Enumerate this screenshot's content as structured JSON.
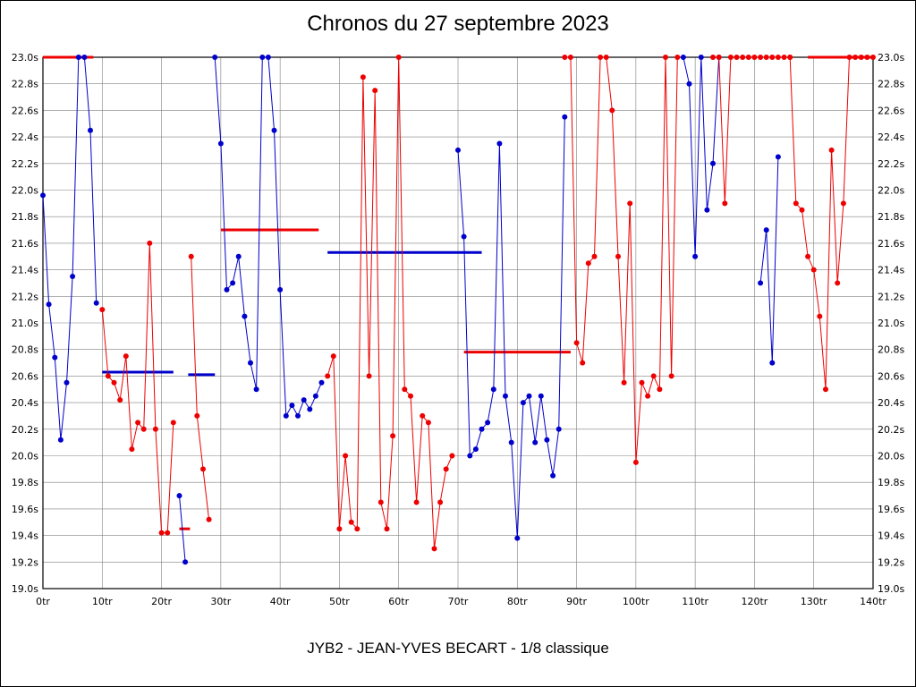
{
  "chart_data": {
    "type": "line",
    "title": "Chronos du 27 septembre 2023",
    "footer": "JYB2 - JEAN-YVES BECART - 1/8 classique",
    "xlim": [
      0,
      140
    ],
    "ylim": [
      19.0,
      23.0
    ],
    "x_tick_step": 10,
    "y_tick_step": 0.2,
    "x_unit": "tr",
    "y_unit": "s",
    "grid": true,
    "legend": "none",
    "colors": {
      "red": "#ee0000",
      "blue": "#0000cc",
      "grid": "#808080",
      "axis": "#000000",
      "background": "#ffffff"
    },
    "series": [
      {
        "name": "stint-blue",
        "color_key": "blue",
        "segments": [
          [
            [
              0,
              21.96
            ],
            [
              1,
              21.14
            ],
            [
              2,
              20.74
            ],
            [
              3,
              20.12
            ],
            [
              4,
              20.55
            ],
            [
              5,
              21.35
            ],
            [
              6,
              23.0
            ],
            [
              7,
              23.0
            ],
            [
              8,
              22.45
            ],
            [
              9,
              21.15
            ]
          ],
          [
            [
              23,
              19.7
            ],
            [
              24,
              19.2
            ]
          ],
          [
            [
              29,
              23.0
            ],
            [
              30,
              22.35
            ],
            [
              31,
              21.25
            ],
            [
              32,
              21.3
            ],
            [
              33,
              21.5
            ],
            [
              34,
              21.05
            ],
            [
              35,
              20.7
            ],
            [
              36,
              20.5
            ],
            [
              37,
              23.0
            ],
            [
              38,
              23.0
            ],
            [
              39,
              22.45
            ],
            [
              40,
              21.25
            ],
            [
              41,
              20.3
            ],
            [
              42,
              20.38
            ],
            [
              43,
              20.3
            ],
            [
              44,
              20.42
            ],
            [
              45,
              20.35
            ],
            [
              46,
              20.45
            ],
            [
              47,
              20.55
            ]
          ],
          [
            [
              70,
              22.3
            ],
            [
              71,
              21.65
            ],
            [
              72,
              20.0
            ],
            [
              73,
              20.05
            ],
            [
              74,
              20.2
            ],
            [
              75,
              20.25
            ],
            [
              76,
              20.5
            ],
            [
              77,
              22.35
            ],
            [
              78,
              20.45
            ],
            [
              79,
              20.1
            ],
            [
              80,
              19.38
            ],
            [
              81,
              20.4
            ],
            [
              82,
              20.45
            ],
            [
              83,
              20.1
            ],
            [
              84,
              20.45
            ],
            [
              85,
              20.12
            ],
            [
              86,
              19.85
            ],
            [
              87,
              20.2
            ],
            [
              88,
              22.55
            ]
          ],
          [
            [
              108,
              23.0
            ],
            [
              109,
              22.8
            ],
            [
              110,
              21.5
            ],
            [
              111,
              23.0
            ],
            [
              112,
              21.85
            ],
            [
              113,
              22.2
            ],
            [
              114,
              23.0
            ]
          ],
          [
            [
              121,
              21.3
            ],
            [
              122,
              21.7
            ],
            [
              123,
              20.7
            ],
            [
              124,
              22.25
            ]
          ]
        ]
      },
      {
        "name": "stint-red",
        "color_key": "red",
        "segments": [
          [
            [
              10,
              21.1
            ],
            [
              11,
              20.6
            ],
            [
              12,
              20.55
            ],
            [
              13,
              20.42
            ],
            [
              14,
              20.75
            ],
            [
              15,
              20.05
            ],
            [
              16,
              20.25
            ],
            [
              17,
              20.2
            ],
            [
              18,
              21.6
            ],
            [
              19,
              20.2
            ],
            [
              20,
              19.42
            ],
            [
              21,
              19.42
            ],
            [
              22,
              20.25
            ]
          ],
          [
            [
              25,
              21.5
            ],
            [
              26,
              20.3
            ],
            [
              27,
              19.9
            ],
            [
              28,
              19.52
            ]
          ],
          [
            [
              48,
              20.6
            ],
            [
              49,
              20.75
            ],
            [
              50,
              19.45
            ],
            [
              51,
              20.0
            ],
            [
              52,
              19.5
            ],
            [
              53,
              19.45
            ],
            [
              54,
              22.85
            ],
            [
              55,
              20.6
            ],
            [
              56,
              22.75
            ],
            [
              57,
              19.65
            ],
            [
              58,
              19.45
            ],
            [
              59,
              20.15
            ],
            [
              60,
              23.0
            ],
            [
              61,
              20.5
            ],
            [
              62,
              20.45
            ],
            [
              63,
              19.65
            ],
            [
              64,
              20.3
            ],
            [
              65,
              20.25
            ],
            [
              66,
              19.3
            ],
            [
              67,
              19.65
            ],
            [
              68,
              19.9
            ],
            [
              69,
              20.0
            ]
          ],
          [
            [
              88,
              23.0
            ],
            [
              89,
              23.0
            ],
            [
              90,
              20.85
            ],
            [
              91,
              20.7
            ],
            [
              92,
              21.45
            ],
            [
              93,
              21.5
            ],
            [
              94,
              23.0
            ],
            [
              95,
              23.0
            ],
            [
              96,
              22.6
            ],
            [
              97,
              21.5
            ],
            [
              98,
              20.55
            ],
            [
              99,
              21.9
            ],
            [
              100,
              19.95
            ],
            [
              101,
              20.55
            ],
            [
              102,
              20.45
            ],
            [
              103,
              20.6
            ],
            [
              104,
              20.5
            ],
            [
              105,
              23.0
            ],
            [
              106,
              20.6
            ],
            [
              107,
              23.0
            ]
          ],
          [
            [
              113,
              23.0
            ],
            [
              114,
              23.0
            ],
            [
              115,
              21.9
            ],
            [
              116,
              23.0
            ],
            [
              117,
              23.0
            ],
            [
              118,
              23.0
            ],
            [
              119,
              23.0
            ],
            [
              120,
              23.0
            ],
            [
              121,
              23.0
            ],
            [
              122,
              23.0
            ],
            [
              123,
              23.0
            ],
            [
              124,
              23.0
            ],
            [
              125,
              23.0
            ],
            [
              126,
              23.0
            ]
          ],
          [
            [
              126,
              23.0
            ],
            [
              127,
              21.9
            ],
            [
              128,
              21.85
            ],
            [
              129,
              21.5
            ],
            [
              130,
              21.4
            ],
            [
              131,
              21.05
            ],
            [
              132,
              20.5
            ],
            [
              133,
              22.3
            ],
            [
              134,
              21.3
            ],
            [
              135,
              21.9
            ],
            [
              136,
              23.0
            ],
            [
              137,
              23.0
            ],
            [
              138,
              23.0
            ],
            [
              139,
              23.0
            ],
            [
              140,
              23.0
            ]
          ]
        ]
      }
    ],
    "average_lines": [
      {
        "color_key": "red",
        "x1": 0,
        "x2": 8.5,
        "y": 23.0
      },
      {
        "color_key": "blue",
        "x1": 10,
        "x2": 22,
        "y": 20.63
      },
      {
        "color_key": "red",
        "x1": 23,
        "x2": 24.8,
        "y": 19.45
      },
      {
        "color_key": "blue",
        "x1": 24.5,
        "x2": 29,
        "y": 20.61
      },
      {
        "color_key": "red",
        "x1": 30,
        "x2": 46.5,
        "y": 21.7
      },
      {
        "color_key": "blue",
        "x1": 48,
        "x2": 74,
        "y": 21.53
      },
      {
        "color_key": "red",
        "x1": 71,
        "x2": 89,
        "y": 20.78
      },
      {
        "color_key": "red",
        "x1": 129,
        "x2": 140,
        "y": 23.0
      }
    ]
  }
}
